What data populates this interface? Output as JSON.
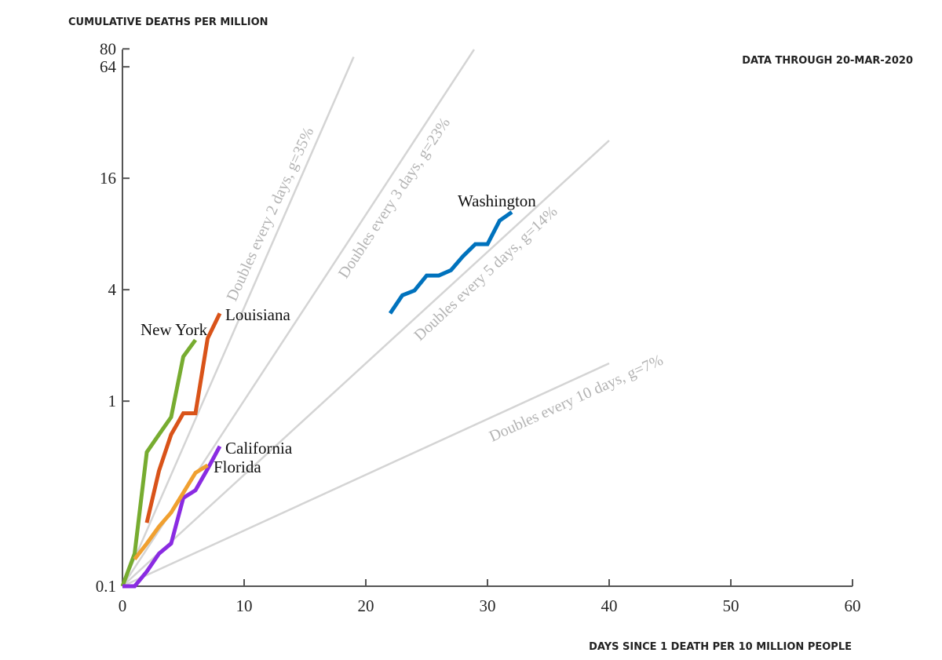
{
  "chart_data": {
    "type": "line",
    "ylabel": "CUMULATIVE DEATHS PER MILLION",
    "xlabel": "DAYS SINCE 1 DEATH PER 10 MILLION PEOPLE",
    "annotation": "DATA THROUGH 20-MAR-2020",
    "yscale": "log2",
    "ylim": [
      0.1,
      80
    ],
    "xlim": [
      0,
      60
    ],
    "yticks": [
      {
        "value": 0.1,
        "label": "0.1"
      },
      {
        "value": 1,
        "label": "1"
      },
      {
        "value": 4,
        "label": "4"
      },
      {
        "value": 16,
        "label": "16"
      },
      {
        "value": 64,
        "label": "64"
      },
      {
        "value": 80,
        "label": "80"
      }
    ],
    "xticks": [
      {
        "value": 0,
        "label": "0"
      },
      {
        "value": 10,
        "label": "10"
      },
      {
        "value": 20,
        "label": "20"
      },
      {
        "value": 30,
        "label": "30"
      },
      {
        "value": 40,
        "label": "40"
      },
      {
        "value": 50,
        "label": "50"
      },
      {
        "value": 60,
        "label": "60"
      }
    ],
    "grid": false,
    "reference_lines": [
      {
        "label": "Doubles every 2 days, g=35%",
        "doubling_days": 2,
        "x_end": 19,
        "color": "#d4d4d4"
      },
      {
        "label": "Doubles every 3 days, g=23%",
        "doubling_days": 3,
        "x_end": 28.9,
        "color": "#d4d4d4"
      },
      {
        "label": "Doubles every 5 days, g=14%",
        "doubling_days": 5,
        "x_end": 40,
        "color": "#d4d4d4"
      },
      {
        "label": "Doubles every 10 days, g=7%",
        "doubling_days": 10,
        "x_end": 40,
        "color": "#d4d4d4"
      }
    ],
    "series": [
      {
        "name": "New York",
        "color": "#77ac30",
        "x": [
          0,
          1,
          2,
          3,
          4,
          5,
          6
        ],
        "values": [
          0.1,
          0.15,
          0.53,
          0.66,
          0.82,
          1.74,
          2.14
        ]
      },
      {
        "name": "Louisiana",
        "color": "#d95319",
        "x": [
          2,
          3,
          4,
          5,
          6,
          7,
          8
        ],
        "values": [
          0.22,
          0.42,
          0.66,
          0.86,
          0.86,
          2.18,
          2.98
        ]
      },
      {
        "name": "California",
        "color": "#8a2be2",
        "x": [
          0,
          1,
          2,
          3,
          4,
          5,
          6,
          7,
          8
        ],
        "values": [
          0.1,
          0.1,
          0.12,
          0.15,
          0.17,
          0.3,
          0.33,
          0.43,
          0.57
        ]
      },
      {
        "name": "Florida",
        "color": "#f0a030",
        "x": [
          1,
          2,
          3,
          4,
          5,
          6,
          7
        ],
        "values": [
          0.14,
          0.17,
          0.21,
          0.25,
          0.32,
          0.41,
          0.45
        ]
      },
      {
        "name": "Washington",
        "color": "#0072bd",
        "x": [
          22,
          23,
          24,
          25,
          26,
          27,
          28,
          29,
          30,
          31,
          32
        ],
        "values": [
          2.98,
          3.73,
          3.96,
          4.77,
          4.77,
          5.1,
          6.08,
          7.05,
          7.05,
          9.45,
          10.5
        ]
      }
    ]
  }
}
